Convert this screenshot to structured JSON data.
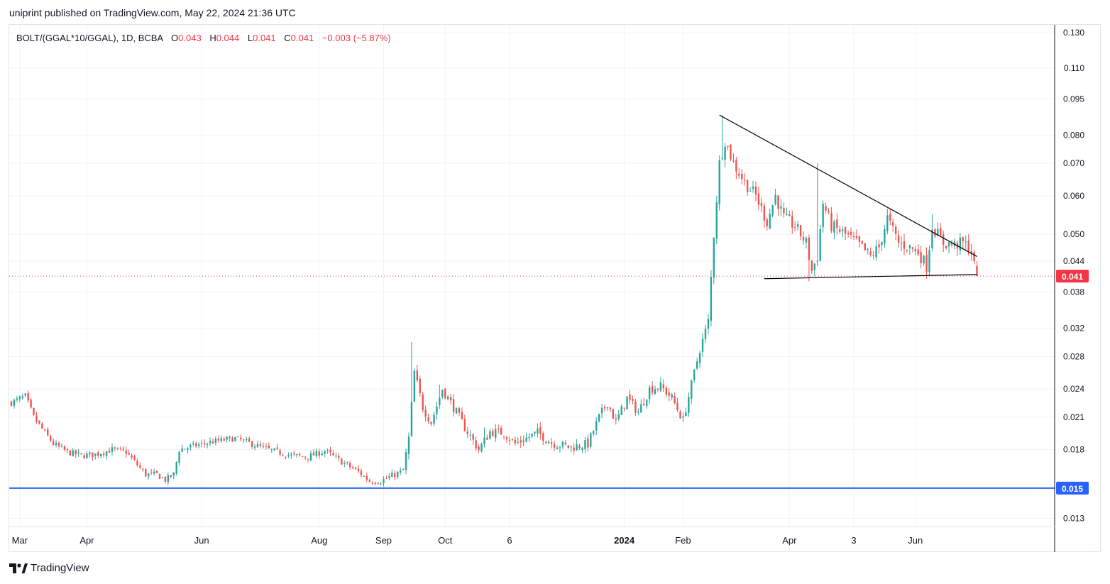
{
  "header": {
    "publisher_line": "uniprint published on TradingView.com, May 22, 2024 21:36 UTC"
  },
  "legend": {
    "symbol": "BOLT/(GGAL*10/GGAL), 1D, BCBA",
    "open_label": "O",
    "open": "0.043",
    "high_label": "H",
    "high": "0.044",
    "low_label": "L",
    "low": "0.041",
    "close_label": "C",
    "close": "0.041",
    "change": "−0.003 (−5.87%)"
  },
  "brand": {
    "name": "TradingView"
  },
  "colors": {
    "up": "#26a69a",
    "down": "#ef5350",
    "support_line": "#2962ff",
    "trendline": "#000000",
    "last_price": "#f23645",
    "grid": "#f0f3fa"
  },
  "chart_data": {
    "type": "candlestick",
    "y_scale": "log",
    "ylim": [
      0.0125,
      0.135
    ],
    "y_ticks": [
      "0.130",
      "0.110",
      "0.095",
      "0.080",
      "0.070",
      "0.060",
      "0.050",
      "0.044",
      "0.038",
      "0.032",
      "0.028",
      "0.024",
      "0.021",
      "0.018",
      "0.015",
      "0.013"
    ],
    "x_tick_labels": [
      "Mar",
      "Apr",
      "Jun",
      "Aug",
      "Sep",
      "Oct",
      "6",
      "2024",
      "Feb",
      "Apr",
      "3",
      "Jun"
    ],
    "last_price": {
      "value": 0.041,
      "label": "0.041"
    },
    "horizontal_line": {
      "value": 0.015,
      "label": "0.015"
    },
    "trendlines": [
      {
        "name": "",
        "from_index": 253,
        "to_index": 345,
        "from_value": 0.088,
        "to_value": 0.045
      },
      {
        "name": "",
        "from_index": 269,
        "to_index": 345,
        "from_value": 0.0405,
        "to_value": 0.0413
      }
    ],
    "series_path": [
      [
        0,
        0.0225
      ],
      [
        5,
        0.0232
      ],
      [
        8,
        0.021
      ],
      [
        12,
        0.0195
      ],
      [
        15,
        0.0185
      ],
      [
        20,
        0.0178
      ],
      [
        25,
        0.0175
      ],
      [
        30,
        0.0176
      ],
      [
        33,
        0.0178
      ],
      [
        36,
        0.018
      ],
      [
        41,
        0.0178
      ],
      [
        44,
        0.017
      ],
      [
        48,
        0.016
      ],
      [
        52,
        0.016
      ],
      [
        55,
        0.0156
      ],
      [
        58,
        0.016
      ],
      [
        60,
        0.018
      ],
      [
        65,
        0.0183
      ],
      [
        72,
        0.0187
      ],
      [
        80,
        0.019
      ],
      [
        87,
        0.0184
      ],
      [
        92,
        0.018
      ],
      [
        100,
        0.0175
      ],
      [
        106,
        0.0174
      ],
      [
        112,
        0.0179
      ],
      [
        118,
        0.017
      ],
      [
        124,
        0.0162
      ],
      [
        128,
        0.0155
      ],
      [
        132,
        0.0155
      ],
      [
        140,
        0.0163
      ],
      [
        142,
        0.019
      ],
      [
        144,
        0.026
      ],
      [
        147,
        0.022
      ],
      [
        150,
        0.0205
      ],
      [
        154,
        0.024
      ],
      [
        158,
        0.022
      ],
      [
        162,
        0.02
      ],
      [
        167,
        0.018
      ],
      [
        171,
        0.0196
      ],
      [
        176,
        0.0195
      ],
      [
        180,
        0.0185
      ],
      [
        184,
        0.019
      ],
      [
        188,
        0.0195
      ],
      [
        193,
        0.0186
      ],
      [
        200,
        0.0182
      ],
      [
        206,
        0.0185
      ],
      [
        210,
        0.021
      ],
      [
        213,
        0.0225
      ],
      [
        216,
        0.0205
      ],
      [
        220,
        0.023
      ],
      [
        224,
        0.0215
      ],
      [
        228,
        0.024
      ],
      [
        232,
        0.0243
      ],
      [
        236,
        0.023
      ],
      [
        240,
        0.0207
      ],
      [
        243,
        0.0245
      ],
      [
        246,
        0.029
      ],
      [
        249,
        0.033
      ],
      [
        251,
        0.05
      ],
      [
        253,
        0.07
      ],
      [
        255,
        0.078
      ],
      [
        258,
        0.07
      ],
      [
        262,
        0.064
      ],
      [
        266,
        0.06
      ],
      [
        270,
        0.053
      ],
      [
        273,
        0.06
      ],
      [
        276,
        0.054
      ],
      [
        280,
        0.052
      ],
      [
        284,
        0.048
      ],
      [
        286,
        0.042
      ],
      [
        288,
        0.045
      ],
      [
        290,
        0.058
      ],
      [
        293,
        0.052
      ],
      [
        298,
        0.05
      ],
      [
        303,
        0.0475
      ],
      [
        307,
        0.045
      ],
      [
        310,
        0.047
      ],
      [
        313,
        0.054
      ],
      [
        317,
        0.048
      ],
      [
        321,
        0.047
      ],
      [
        324,
        0.046
      ],
      [
        327,
        0.043
      ],
      [
        329,
        0.052
      ],
      [
        333,
        0.048
      ],
      [
        337,
        0.0475
      ],
      [
        340,
        0.048
      ],
      [
        342,
        0.047
      ],
      [
        343,
        0.046
      ],
      [
        344,
        0.043
      ],
      [
        345,
        0.041
      ]
    ],
    "spikes": [
      {
        "index": 143,
        "high": 0.03
      },
      {
        "index": 153,
        "high": 0.0245
      },
      {
        "index": 169,
        "high": 0.02
      },
      {
        "index": 254,
        "high": 0.088
      },
      {
        "index": 285,
        "high": 0.04
      },
      {
        "index": 288,
        "high": 0.07
      },
      {
        "index": 327,
        "high": 0.0405
      },
      {
        "index": 329,
        "high": 0.055
      }
    ]
  }
}
